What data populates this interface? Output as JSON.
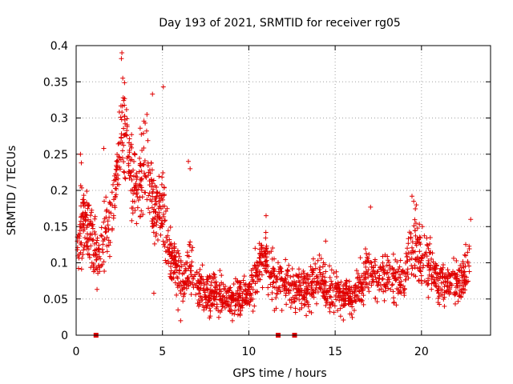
{
  "chart_data": {
    "type": "scatter",
    "title": "Day 193 of 2021, SRMTID for receiver rg05",
    "xlabel": "GPS time / hours",
    "ylabel": "SRMTID / TECUs",
    "xlim": [
      0,
      24
    ],
    "ylim": [
      0,
      0.4
    ],
    "xticks": [
      0,
      5,
      10,
      15,
      20
    ],
    "yticks": [
      0,
      0.05,
      0.1,
      0.15,
      0.2,
      0.25,
      0.3,
      0.35,
      0.4
    ],
    "xtick_labels": [
      "0",
      "5",
      "10",
      "15",
      "20"
    ],
    "ytick_labels": [
      "0",
      "0.05",
      "0.1",
      "0.15",
      "0.2",
      "0.25",
      "0.3",
      "0.35",
      "0.4"
    ],
    "grid": true,
    "marker": "+",
    "color": "#e00000",
    "series": [
      {
        "name": "SRMTID",
        "trend": [
          [
            0.0,
            0.12
          ],
          [
            0.3,
            0.15
          ],
          [
            0.6,
            0.16
          ],
          [
            1.0,
            0.12
          ],
          [
            1.3,
            0.1
          ],
          [
            1.6,
            0.14
          ],
          [
            2.0,
            0.16
          ],
          [
            2.3,
            0.2
          ],
          [
            2.6,
            0.28
          ],
          [
            3.0,
            0.26
          ],
          [
            3.3,
            0.2
          ],
          [
            3.6,
            0.21
          ],
          [
            4.0,
            0.24
          ],
          [
            4.3,
            0.2
          ],
          [
            4.6,
            0.16
          ],
          [
            5.0,
            0.19
          ],
          [
            5.4,
            0.11
          ],
          [
            5.8,
            0.09
          ],
          [
            6.2,
            0.07
          ],
          [
            6.6,
            0.1
          ],
          [
            7.0,
            0.07
          ],
          [
            7.5,
            0.055
          ],
          [
            8.0,
            0.06
          ],
          [
            8.5,
            0.055
          ],
          [
            9.0,
            0.05
          ],
          [
            9.5,
            0.055
          ],
          [
            10.0,
            0.06
          ],
          [
            10.5,
            0.09
          ],
          [
            11.0,
            0.11
          ],
          [
            11.5,
            0.07
          ],
          [
            12.0,
            0.075
          ],
          [
            12.5,
            0.06
          ],
          [
            13.0,
            0.06
          ],
          [
            13.5,
            0.065
          ],
          [
            14.0,
            0.08
          ],
          [
            14.5,
            0.065
          ],
          [
            15.0,
            0.06
          ],
          [
            15.5,
            0.055
          ],
          [
            16.0,
            0.05
          ],
          [
            16.5,
            0.07
          ],
          [
            17.0,
            0.1
          ],
          [
            17.5,
            0.075
          ],
          [
            18.0,
            0.08
          ],
          [
            18.5,
            0.07
          ],
          [
            19.0,
            0.08
          ],
          [
            19.5,
            0.13
          ],
          [
            20.0,
            0.11
          ],
          [
            20.5,
            0.095
          ],
          [
            21.0,
            0.07
          ],
          [
            21.5,
            0.075
          ],
          [
            22.0,
            0.075
          ],
          [
            22.5,
            0.08
          ],
          [
            22.8,
            0.11
          ]
        ],
        "points_per_hour": 85,
        "spread": 0.022
      }
    ],
    "zero_markers_x": [
      1.15,
      11.7,
      12.65
    ],
    "outliers": [
      [
        2.65,
        0.39
      ],
      [
        2.62,
        0.382
      ],
      [
        2.7,
        0.355
      ],
      [
        4.42,
        0.333
      ],
      [
        5.05,
        0.343
      ],
      [
        4.1,
        0.305
      ],
      [
        6.5,
        0.24
      ],
      [
        6.6,
        0.23
      ],
      [
        1.6,
        0.258
      ],
      [
        0.25,
        0.25
      ],
      [
        0.3,
        0.238
      ],
      [
        11.0,
        0.165
      ],
      [
        17.05,
        0.177
      ],
      [
        19.45,
        0.192
      ],
      [
        19.55,
        0.185
      ],
      [
        19.7,
        0.18
      ],
      [
        22.85,
        0.16
      ],
      [
        4.5,
        0.058
      ],
      [
        6.05,
        0.02
      ],
      [
        9.05,
        0.02
      ],
      [
        5.9,
        0.035
      ],
      [
        14.45,
        0.13
      ],
      [
        20.05,
        0.15
      ]
    ]
  }
}
